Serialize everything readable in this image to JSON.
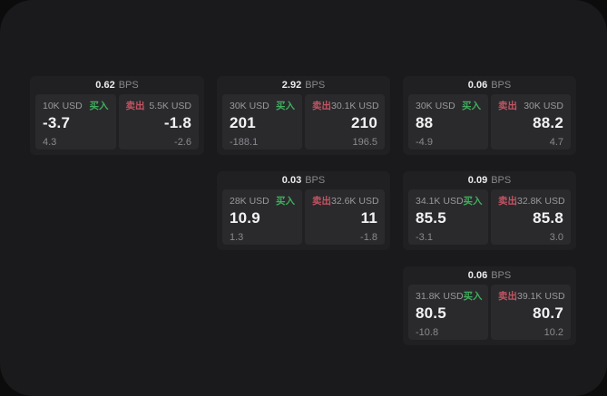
{
  "page": {
    "background": "#0c0c0d",
    "panel_background": "#1a1a1c",
    "card_background": "#202022",
    "tile_background": "#2a2a2d"
  },
  "colors": {
    "buy_green": "#3fae5c",
    "sell_red": "#c25462"
  },
  "labels": {
    "buy": "买入",
    "sell": "卖出",
    "bps_unit": "BPS"
  },
  "cards": [
    {
      "grid": {
        "row": 1,
        "col": 1
      },
      "bps": "0.62",
      "buy": {
        "notional": "10K USD",
        "value": "-3.7",
        "sub": "4.3"
      },
      "sell": {
        "notional": "5.5K USD",
        "value": "-1.8",
        "sub": "-2.6"
      }
    },
    {
      "grid": {
        "row": 1,
        "col": 2
      },
      "bps": "2.92",
      "buy": {
        "notional": "30K USD",
        "value": "201",
        "sub": "-188.1"
      },
      "sell": {
        "notional": "30.1K USD",
        "value": "210",
        "sub": "196.5"
      }
    },
    {
      "grid": {
        "row": 1,
        "col": 3
      },
      "bps": "0.06",
      "buy": {
        "notional": "30K USD",
        "value": "88",
        "sub": "-4.9"
      },
      "sell": {
        "notional": "30K USD",
        "value": "88.2",
        "sub": "4.7"
      }
    },
    {
      "grid": {
        "row": 2,
        "col": 2
      },
      "bps": "0.03",
      "buy": {
        "notional": "28K USD",
        "value": "10.9",
        "sub": "1.3"
      },
      "sell": {
        "notional": "32.6K USD",
        "value": "11",
        "sub": "-1.8"
      }
    },
    {
      "grid": {
        "row": 2,
        "col": 3
      },
      "bps": "0.09",
      "buy": {
        "notional": "34.1K USD",
        "value": "85.5",
        "sub": "-3.1"
      },
      "sell": {
        "notional": "32.8K USD",
        "value": "85.8",
        "sub": "3.0"
      }
    },
    {
      "grid": {
        "row": 3,
        "col": 3
      },
      "bps": "0.06",
      "buy": {
        "notional": "31.8K USD",
        "value": "80.5",
        "sub": "-10.8"
      },
      "sell": {
        "notional": "39.1K USD",
        "value": "80.7",
        "sub": "10.2"
      }
    }
  ]
}
